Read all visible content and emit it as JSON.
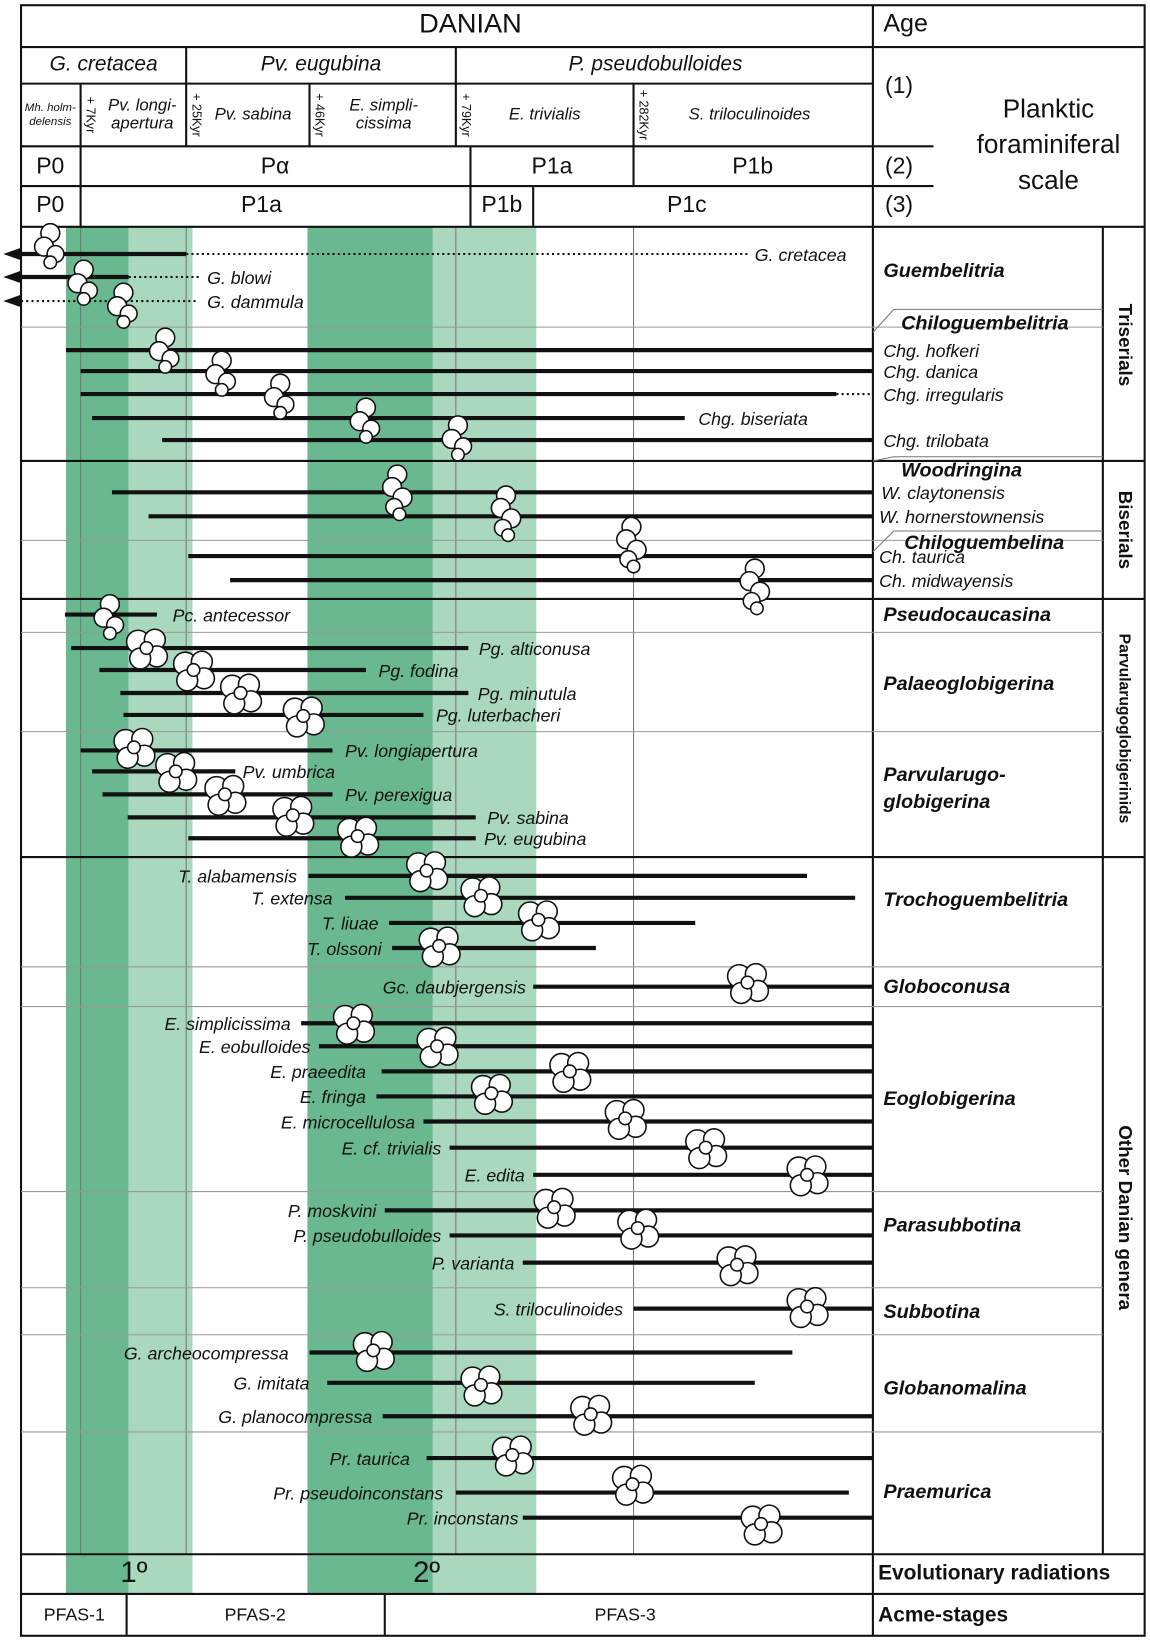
{
  "header": {
    "stage": "DANIAN",
    "age": "Age",
    "scale_title": [
      "Planktic",
      "foraminiferal",
      "scale"
    ],
    "scale_rows": [
      "(1)",
      "(2)",
      "(3)"
    ],
    "zones": [
      "G. cretacea",
      "Pv. eugubina",
      "P. pseudobulloides"
    ],
    "subzones": [
      [
        "Mh. holm-",
        "delensis"
      ],
      [
        "Pv. longi-",
        "apertura"
      ],
      [
        "Pv. sabina"
      ],
      [
        "E. simpli-",
        "cissima"
      ],
      [
        "E. trivialis"
      ],
      [
        "S. triloculinoides"
      ]
    ],
    "durations": [
      "+ 7Kyr",
      "+ 25Kyr",
      "+ 46Kyr",
      "+ 79Kyr",
      "+ 282Kyr"
    ],
    "row2": [
      "P0",
      "Pα",
      "P1a",
      "P1b"
    ],
    "row3": [
      "P0",
      "P1a",
      "P1b",
      "P1c"
    ]
  },
  "groups": [
    "Triserials",
    "Biserials",
    "Parvularugoglobigerinids",
    "Other Danian genera"
  ],
  "genera": [
    {
      "name": [
        "Guembelitria"
      ],
      "species": [
        "G. cretacea",
        "G. blowi",
        "G. dammula"
      ]
    },
    {
      "name": [
        "Chiloguembelitria"
      ],
      "species": [
        "Chg. hofkeri",
        "Chg. danica",
        "Chg. irregularis",
        "Chg. biseriata",
        "Chg. trilobata"
      ]
    },
    {
      "name": [
        "Woodringina"
      ],
      "species": [
        "W. claytonensis",
        "W. hornerstownensis"
      ]
    },
    {
      "name": [
        "Chiloguembelina"
      ],
      "species": [
        "Ch. taurica",
        "Ch. midwayensis"
      ]
    },
    {
      "name": [
        "Pseudocaucasina"
      ],
      "species": [
        "Pc. antecessor"
      ]
    },
    {
      "name": [
        "Palaeoglobigerina"
      ],
      "species": [
        "Pg. alticonusa",
        "Pg. fodina",
        "Pg. minutula",
        "Pg. luterbacheri"
      ]
    },
    {
      "name": [
        "Parvularugo-",
        "globigerina"
      ],
      "species": [
        "Pv. longiapertura",
        "Pv. umbrica",
        "Pv. perexigua",
        "Pv. sabina",
        "Pv. eugubina"
      ]
    },
    {
      "name": [
        "Trochoguembelitria"
      ],
      "species": [
        "T. alabamensis",
        "T. extensa",
        "T. liuae",
        "T. olssoni"
      ]
    },
    {
      "name": [
        "Globoconusa"
      ],
      "species": [
        "Gc. daubjergensis"
      ]
    },
    {
      "name": [
        "Eoglobigerina"
      ],
      "species": [
        "E. simplicissima",
        "E. eobulloides",
        "E. praeedita",
        "E. fringa",
        "E. microcellulosa",
        "E. cf. trivialis",
        "E. edita"
      ]
    },
    {
      "name": [
        "Parasubbotina"
      ],
      "species": [
        "P. moskvini",
        "P. pseudobulloides",
        "P. varianta"
      ]
    },
    {
      "name": [
        "Subbotina"
      ],
      "species": [
        "S. triloculinoides"
      ]
    },
    {
      "name": [
        "Globanomalina"
      ],
      "species": [
        "G. archeocompressa",
        "G. imitata",
        "G. planocompressa"
      ]
    },
    {
      "name": [
        "Praemurica"
      ],
      "species": [
        "Pr. taurica",
        "Pr. pseudoinconstans",
        "Pr. inconstans"
      ]
    }
  ],
  "footer": {
    "radiations": [
      "1º",
      "2º"
    ],
    "radiations_label": "Evolutionary radiations",
    "acme_stages": [
      "PFAS-1",
      "PFAS-2",
      "PFAS-3"
    ],
    "acme_label": "Acme-stages"
  }
}
